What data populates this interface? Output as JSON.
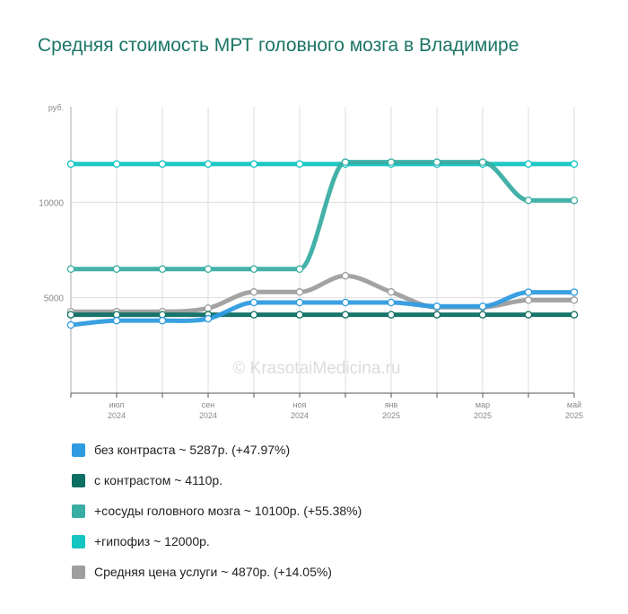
{
  "title": "Средняя стоимость МРТ головного мозга в Владимире",
  "watermark": "© KrasotaiMedicina.ru",
  "legend": [
    {
      "label": "без контраста ~ 5287р. (+47.97%)",
      "color": "#2f9be0"
    },
    {
      "label": "с контрастом ~ 4110р.",
      "color": "#0d6e63"
    },
    {
      "label": "+сосуды головного мозга ~ 10100р. (+55.38%)",
      "color": "#3aada3"
    },
    {
      "label": "+гипофиз ~ 12000р.",
      "color": "#14c5c2"
    },
    {
      "label": "Средняя цена услуги ~ 4870р. (+14.05%)",
      "color": "#9e9e9e"
    }
  ],
  "chart_data": {
    "type": "line",
    "ylabel": "руб.",
    "ylim": [
      0,
      15000
    ],
    "yticks": [
      5000,
      10000
    ],
    "grid": true,
    "legend_position": "bottom",
    "x": [
      "2024-06",
      "2024-07",
      "2024-08",
      "2024-09",
      "2024-10",
      "2024-11",
      "2024-12",
      "2025-01",
      "2025-02",
      "2025-03",
      "2025-04",
      "2025-05"
    ],
    "x_tick_labels": [
      {
        "month": "июл",
        "year": "2024",
        "index": 1
      },
      {
        "month": "сен",
        "year": "2024",
        "index": 3
      },
      {
        "month": "ноя",
        "year": "2024",
        "index": 5
      },
      {
        "month": "янв",
        "year": "2025",
        "index": 7
      },
      {
        "month": "мар",
        "year": "2025",
        "index": 9
      },
      {
        "month": "май",
        "year": "2025",
        "index": 11
      }
    ],
    "series": [
      {
        "name": "без контраста",
        "color": "#2f9be0",
        "values": [
          3573,
          3800,
          3800,
          3900,
          4750,
          4750,
          4750,
          4750,
          4550,
          4550,
          5287,
          5287
        ]
      },
      {
        "name": "с контрастом",
        "color": "#0d6e63",
        "values": [
          4110,
          4110,
          4110,
          4110,
          4110,
          4110,
          4110,
          4110,
          4110,
          4110,
          4110,
          4110
        ]
      },
      {
        "name": "+сосуды головного мозга",
        "color": "#3aada3",
        "values": [
          6500,
          6500,
          6500,
          6500,
          6500,
          6500,
          12100,
          12100,
          12100,
          12100,
          10100,
          10100
        ]
      },
      {
        "name": "+гипофиз",
        "color": "#14c5c2",
        "values": [
          12000,
          12000,
          12000,
          12000,
          12000,
          12000,
          12000,
          12000,
          12000,
          12000,
          12000,
          12000
        ]
      },
      {
        "name": "Средняя цена услуги",
        "color": "#9e9e9e",
        "values": [
          4270,
          4270,
          4270,
          4450,
          5300,
          5300,
          6150,
          5300,
          4500,
          4500,
          4870,
          4870
        ]
      }
    ]
  }
}
